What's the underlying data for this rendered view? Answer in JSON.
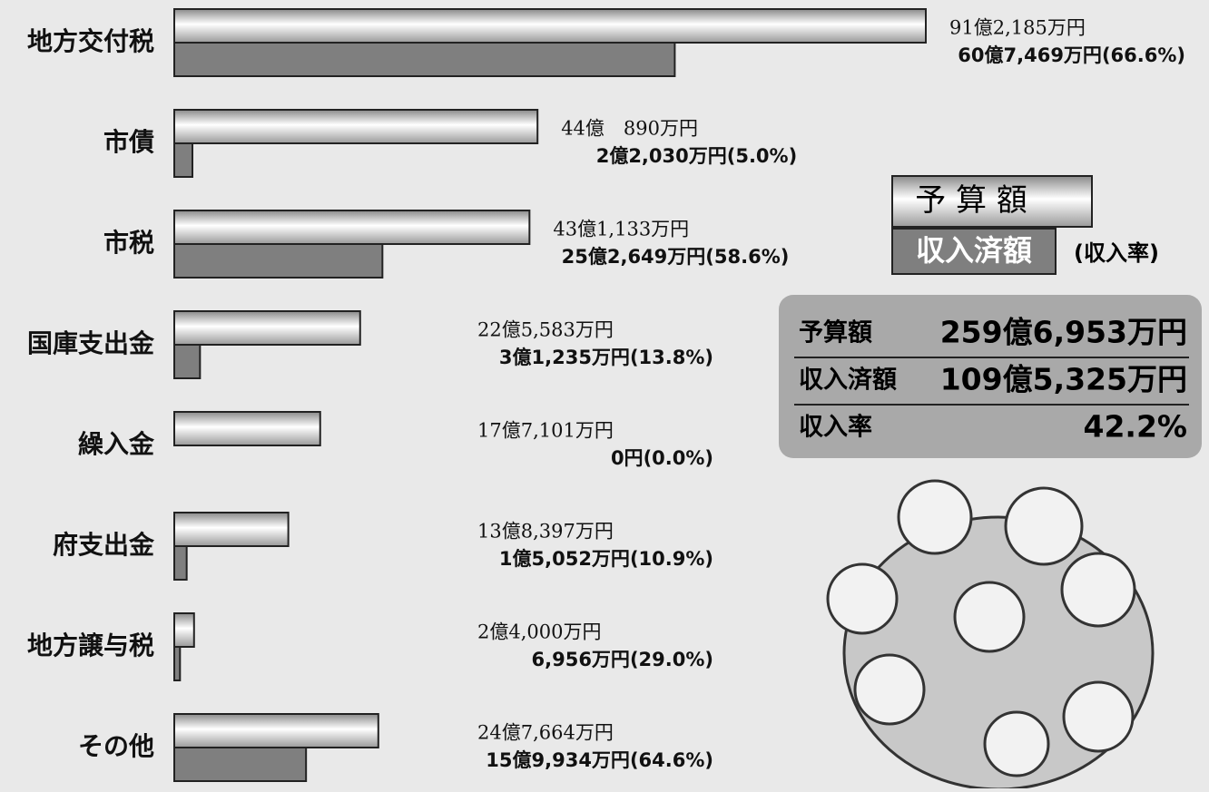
{
  "chart_data": {
    "type": "bar",
    "orientation": "horizontal",
    "categories": [
      "地方交付税",
      "市債",
      "市税",
      "国庫支出金",
      "繰入金",
      "府支出金",
      "地方譲与税",
      "その他"
    ],
    "series": [
      {
        "name": "予 算 額",
        "color": "#d4d4d4",
        "values": [
          912185,
          440890,
          431133,
          225583,
          177101,
          138397,
          24000,
          247664
        ],
        "value_labels": [
          "91億2,185万円",
          "44億　890万円",
          "43億1,133万円",
          "22億5,583万円",
          "17億7,101万円",
          "13億8,397万円",
          "2億4,000万円",
          "24億7,664万円"
        ]
      },
      {
        "name": "収入済額",
        "color": "#7f7f7f",
        "values": [
          607469,
          22030,
          252649,
          31235,
          0,
          15052,
          6956,
          159934
        ],
        "value_labels": [
          "60億7,469万円",
          "2億2,030万円",
          "25億2,649万円",
          "3億1,235万円",
          "0円",
          "1億5,052万円",
          "6,956万円",
          "15億9,934万円"
        ],
        "rates": [
          66.6,
          5.0,
          58.6,
          13.8,
          0.0,
          10.9,
          29.0,
          64.6
        ],
        "rate_labels": [
          "(66.6%)",
          "(5.0%)",
          "(58.6%)",
          "(13.8%)",
          "(0.0%)",
          "(10.9%)",
          "(29.0%)",
          "(64.6%)"
        ]
      }
    ],
    "rate_legend": "(収入率)",
    "summary": [
      {
        "label": "予算額",
        "value": "259億6,953万円"
      },
      {
        "label": "収入済額",
        "value": "109億5,325万円"
      },
      {
        "label": "収入率",
        "value": "42.2%"
      }
    ]
  }
}
